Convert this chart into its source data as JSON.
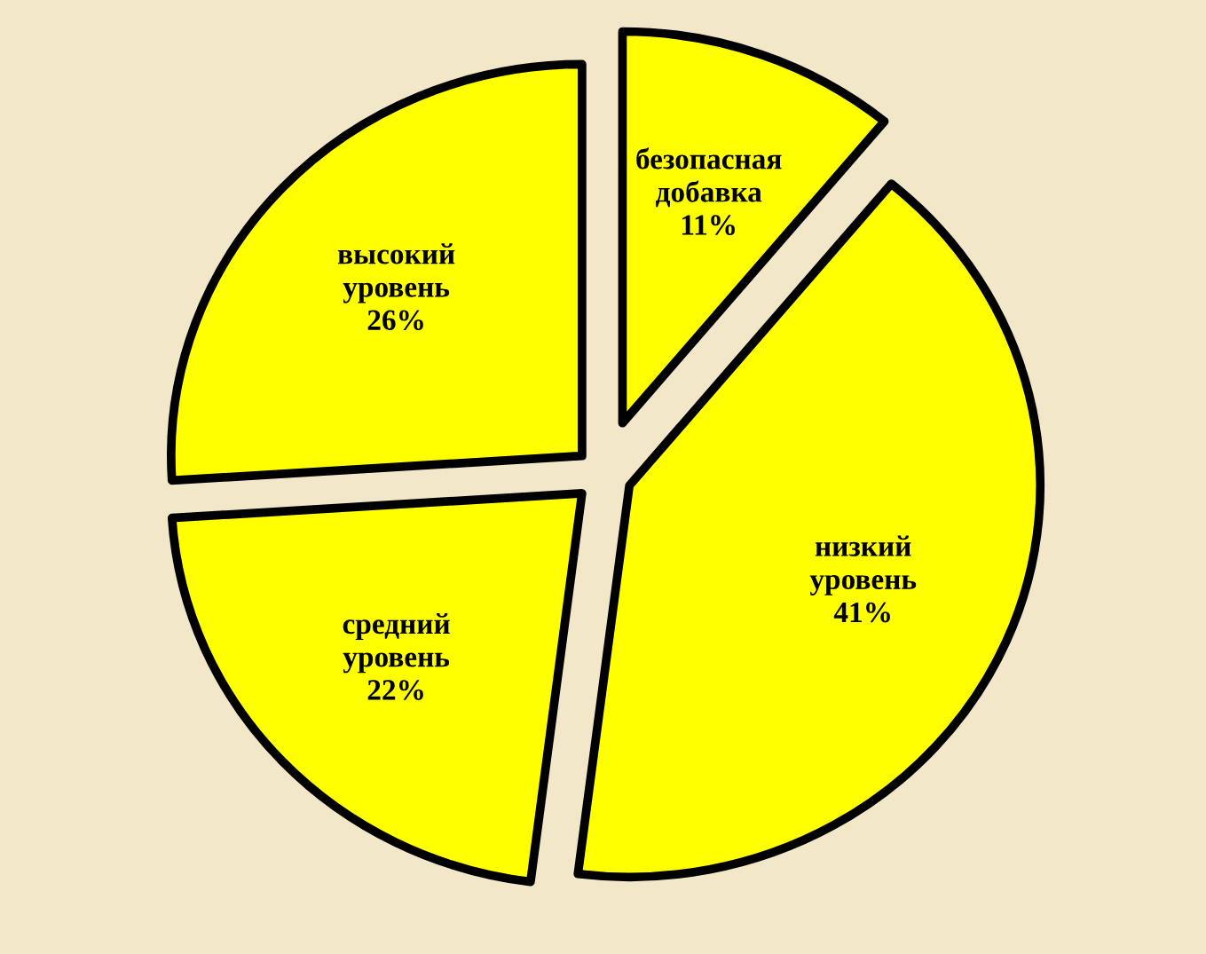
{
  "chart_data": {
    "type": "pie",
    "categories": [
      "безопасная добавка",
      "низкий уровень",
      "средний уровень",
      "высокий уровень"
    ],
    "values": [
      11,
      41,
      22,
      26
    ],
    "value_labels": [
      "11%",
      "41%",
      "22%",
      "26%"
    ],
    "colors": [
      "#ffff00",
      "#ffff00",
      "#ffff00",
      "#ffff00"
    ],
    "legend": false
  }
}
